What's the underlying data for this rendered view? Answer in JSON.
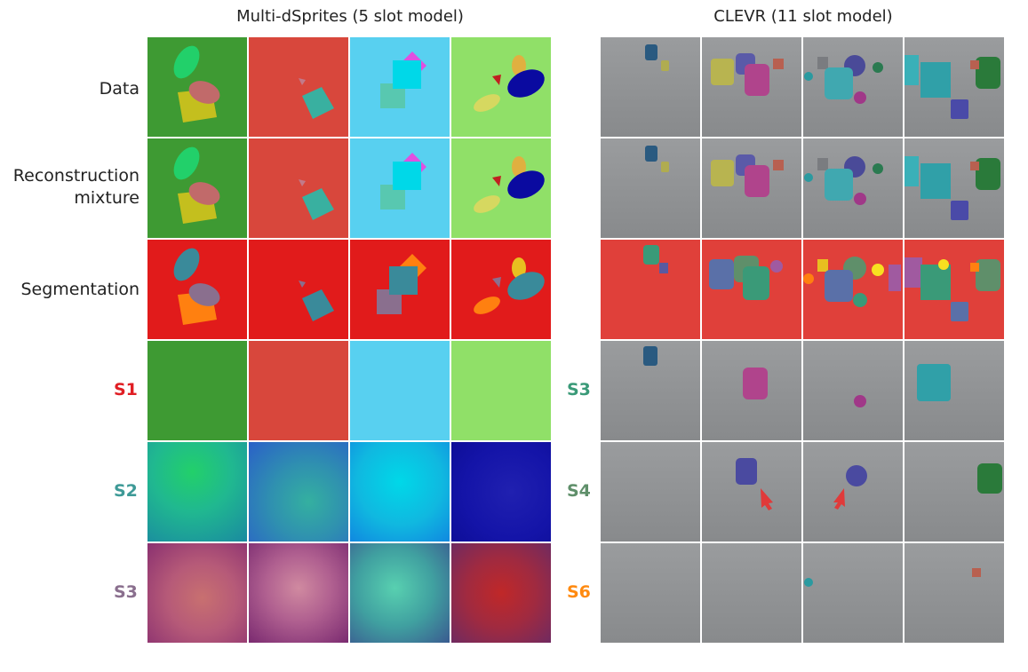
{
  "titles": {
    "left": "Multi-dSprites (5 slot model)",
    "right": "CLEVR (11 slot model)"
  },
  "row_labels": {
    "data": "Data",
    "recon_line1": "Reconstruction",
    "recon_line2": "mixture",
    "segmentation": "Segmentation"
  },
  "slot_labels": {
    "left": [
      {
        "text": "S1",
        "color": "#e01e24"
      },
      {
        "text": "S2",
        "color": "#3e9a97"
      },
      {
        "text": "S3",
        "color": "#8a6f8e"
      }
    ],
    "right": [
      {
        "text": "S3",
        "color": "#3a9a78"
      },
      {
        "text": "S4",
        "color": "#5f8f6a"
      },
      {
        "text": "S6",
        "color": "#ff8a10"
      }
    ]
  },
  "colors": {
    "seg_red": "#e11b1b",
    "clevr_floor": "#8e9092",
    "arrow": "#e03a3a"
  }
}
